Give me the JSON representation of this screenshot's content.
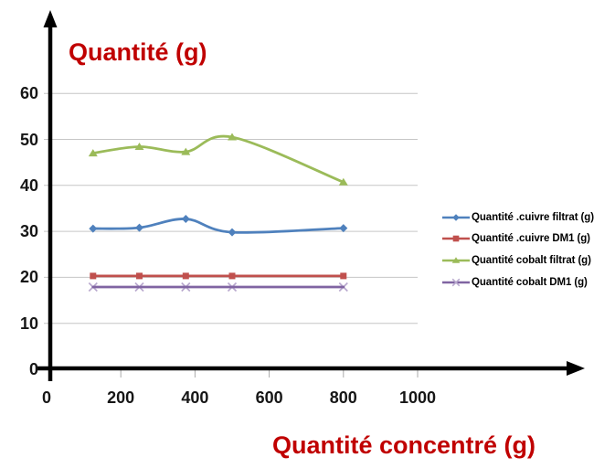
{
  "chart_data": {
    "type": "line",
    "title": "Quantité (g)",
    "xlabel": "Quantité concentré (g)",
    "x": [
      125,
      250,
      375,
      500,
      800
    ],
    "x_ticks": [
      0,
      200,
      400,
      600,
      800,
      1000
    ],
    "y_ticks": [
      0,
      10,
      20,
      30,
      40,
      50,
      60
    ],
    "xlim": [
      0,
      1100
    ],
    "ylim": [
      0,
      65
    ],
    "grid": "horizontal",
    "legend_position": "right",
    "smooth_lines": true,
    "series": [
      {
        "name": "Quantité .cuivre filtrat (g)",
        "color": "#4F81BD",
        "marker": "diamond",
        "marker_color": "#4F81BD",
        "values": [
          30.6,
          30.8,
          32.7,
          29.8,
          30.7
        ]
      },
      {
        "name": "Quantité .cuivre DM1 (g)",
        "color": "#C0504D",
        "marker": "square",
        "marker_color": "#C0504D",
        "values": [
          20.3,
          20.3,
          20.3,
          20.3,
          20.3
        ]
      },
      {
        "name": "Quantité cobalt filtrat  (g)",
        "color": "#9BBB59",
        "marker": "triangle",
        "marker_color": "#9BBB59",
        "values": [
          47.0,
          48.4,
          47.3,
          50.5,
          40.7
        ]
      },
      {
        "name": "Quantité cobalt DM1 (g)",
        "color": "#8064A2",
        "marker": "x",
        "marker_color": "#B9A9CE",
        "values": [
          17.9,
          17.9,
          17.9,
          17.9,
          17.9
        ]
      }
    ]
  },
  "colors": {
    "title": "#C00000",
    "xlabel": "#C00000",
    "axis": "#000000",
    "gridline": "#C6C6C6",
    "x_minor_tick": "#ABABAB",
    "tick_label": "#161616",
    "legend_text": "#000000",
    "background": "#FFFFFF"
  }
}
